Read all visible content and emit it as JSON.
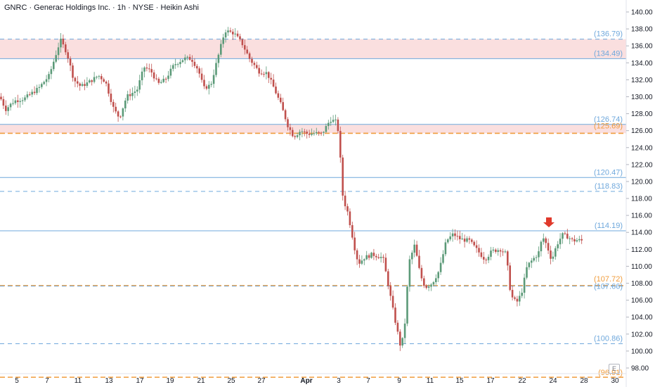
{
  "header": {
    "title": "GNRC · Generac Holdings Inc. · 1h · NYSE · Heikin Ashi"
  },
  "badge": "E",
  "colors": {
    "up": "#5b9a78",
    "down": "#c0504d",
    "blue_line": "#6fa8dc",
    "orange_line": "#f09c3c",
    "zone_fill": "#f9d9d9",
    "arrow": "#e0392b",
    "axis_text": "#131722"
  },
  "chart_data": {
    "type": "candlestick",
    "style": "Heikin Ashi",
    "ylim": [
      97.2,
      141.0
    ],
    "y_ticks": [
      98,
      100,
      102,
      104,
      106,
      108,
      110,
      112,
      114,
      116,
      118,
      120,
      122,
      124,
      126,
      128,
      130,
      132,
      134,
      136,
      138,
      140
    ],
    "y_tick_labels": [
      "98.00",
      "100.00",
      "102.00",
      "104.00",
      "106.00",
      "108.00",
      "110.00",
      "112.00",
      "114.00",
      "116.00",
      "118.00",
      "120.00",
      "122.00",
      "124.00",
      "126.00",
      "128.00",
      "130.00",
      "132.00",
      "134.00",
      "136.00",
      "138.00",
      "140.00"
    ],
    "x_tick_labels": [
      "5",
      "7",
      "11",
      "13",
      "17",
      "19",
      "21",
      "25",
      "27",
      "Apr",
      "3",
      "7",
      "9",
      "11",
      "15",
      "17",
      "22",
      "24",
      "28",
      "30"
    ],
    "levels": [
      {
        "value": 136.79,
        "label": "(136.79)",
        "style": "blue-dashed"
      },
      {
        "value": 134.49,
        "label": "(134.49)",
        "style": "blue-solid"
      },
      {
        "value": 126.74,
        "label": "(126.74)",
        "style": "blue-solid"
      },
      {
        "value": 125.69,
        "label": "(125.69)",
        "style": "orange-dashed"
      },
      {
        "value": 120.47,
        "label": "(120.47)",
        "style": "blue-solid"
      },
      {
        "value": 118.83,
        "label": "(118.83)",
        "style": "blue-dashed"
      },
      {
        "value": 114.19,
        "label": "(114.19)",
        "style": "blue-solid"
      },
      {
        "value": 107.72,
        "label": "(107.72)",
        "style": "orange-dashed"
      },
      {
        "value": 107.66,
        "label": "(107.66)",
        "style": "blue-dashed"
      },
      {
        "value": 100.86,
        "label": "(100.86)",
        "style": "blue-dashed"
      },
      {
        "value": 96.91,
        "label": "(96.91)",
        "style": "orange-dashed"
      }
    ],
    "zones": [
      {
        "from": 134.49,
        "to": 136.79
      },
      {
        "from": 125.69,
        "to": 126.74
      }
    ],
    "price_path": [
      [
        0,
        130.0
      ],
      [
        8,
        128.5
      ],
      [
        20,
        129.5
      ],
      [
        35,
        129.8
      ],
      [
        55,
        131.0
      ],
      [
        70,
        132.5
      ],
      [
        86,
        136.7
      ],
      [
        95,
        135.2
      ],
      [
        105,
        132.0
      ],
      [
        115,
        131.2
      ],
      [
        128,
        131.8
      ],
      [
        140,
        132.5
      ],
      [
        150,
        131.8
      ],
      [
        162,
        128.5
      ],
      [
        170,
        127.5
      ],
      [
        180,
        130.0
      ],
      [
        195,
        130.8
      ],
      [
        205,
        133.5
      ],
      [
        215,
        133.0
      ],
      [
        225,
        131.5
      ],
      [
        235,
        132.0
      ],
      [
        248,
        133.8
      ],
      [
        262,
        134.5
      ],
      [
        272,
        134.5
      ],
      [
        282,
        133.2
      ],
      [
        290,
        131.0
      ],
      [
        300,
        131.4
      ],
      [
        308,
        134.0
      ],
      [
        320,
        137.8
      ],
      [
        333,
        137.5
      ],
      [
        345,
        136.2
      ],
      [
        355,
        134.5
      ],
      [
        368,
        133.0
      ],
      [
        380,
        132.8
      ],
      [
        390,
        131.0
      ],
      [
        400,
        129.0
      ],
      [
        410,
        126.5
      ],
      [
        418,
        125.3
      ],
      [
        428,
        126.0
      ],
      [
        438,
        125.6
      ],
      [
        448,
        125.7
      ],
      [
        458,
        125.6
      ],
      [
        470,
        127.3
      ],
      [
        480,
        127.0
      ],
      [
        484,
        123.0
      ],
      [
        488,
        118.0
      ],
      [
        495,
        116.3
      ],
      [
        505,
        112.0
      ],
      [
        510,
        110.3
      ],
      [
        518,
        111.0
      ],
      [
        530,
        111.4
      ],
      [
        545,
        111.0
      ],
      [
        552,
        108.0
      ],
      [
        560,
        104.5
      ],
      [
        570,
        100.5
      ],
      [
        575,
        102.0
      ],
      [
        582,
        110.5
      ],
      [
        590,
        112.5
      ],
      [
        598,
        109.0
      ],
      [
        605,
        107.5
      ],
      [
        615,
        108.0
      ],
      [
        625,
        109.5
      ],
      [
        635,
        113.0
      ],
      [
        645,
        113.8
      ],
      [
        655,
        113.2
      ],
      [
        668,
        113.0
      ],
      [
        680,
        111.8
      ],
      [
        690,
        110.8
      ],
      [
        700,
        111.8
      ],
      [
        712,
        112.0
      ],
      [
        720,
        111.5
      ],
      [
        727,
        106.5
      ],
      [
        735,
        105.7
      ],
      [
        742,
        106.8
      ],
      [
        750,
        110.0
      ],
      [
        758,
        110.8
      ],
      [
        766,
        111.5
      ],
      [
        772,
        113.5
      ],
      [
        778,
        112.5
      ],
      [
        785,
        110.7
      ],
      [
        792,
        112.5
      ],
      [
        800,
        113.7
      ],
      [
        808,
        113.5
      ],
      [
        815,
        113.0
      ],
      [
        822,
        113.1
      ],
      [
        830,
        113.0
      ]
    ],
    "annotation": {
      "type": "arrow-down",
      "near_value": 114.6
    }
  }
}
